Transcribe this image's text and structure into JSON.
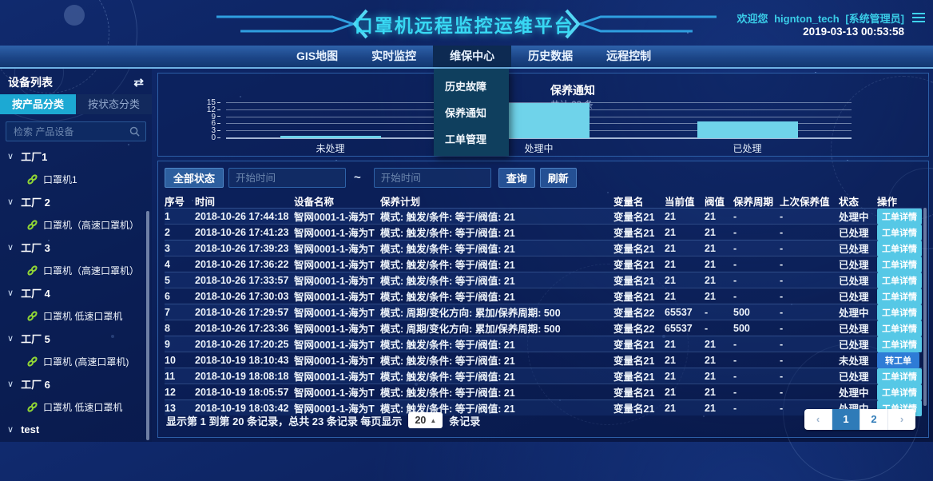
{
  "icons": {
    "swap": "⇄",
    "chevron": "∨",
    "caret_up": "▲"
  },
  "header": {
    "title": "口罩机远程监控运维平台",
    "welcome_prefix": "欢迎您",
    "username": "hignton_tech",
    "role": "[系统管理员]",
    "datetime": "2019-03-13 00:53:58"
  },
  "nav": {
    "items": [
      {
        "label": "GIS地图",
        "active": false
      },
      {
        "label": "实时监控",
        "active": false
      },
      {
        "label": "维保中心",
        "active": true
      },
      {
        "label": "历史数据",
        "active": false
      },
      {
        "label": "远程控制",
        "active": false
      }
    ],
    "dropdown_items": [
      "历史故障",
      "保养通知",
      "工单管理"
    ]
  },
  "sidebar": {
    "title": "设备列表",
    "tabs": [
      {
        "label": "按产品分类",
        "active": true
      },
      {
        "label": "按状态分类",
        "active": false
      }
    ],
    "search_placeholder": "检索 产品设备",
    "tree": [
      {
        "group": "工厂1",
        "children": [
          "口罩机1"
        ]
      },
      {
        "group": "工厂 2",
        "children": [
          "口罩机（高速口罩机）"
        ]
      },
      {
        "group": "工厂 3",
        "children": [
          "口罩机（高速口罩机）"
        ]
      },
      {
        "group": "工厂 4",
        "children": [
          "口罩机 低速口罩机"
        ]
      },
      {
        "group": "工厂 5",
        "children": [
          "口罩机 (高速口罩机)"
        ]
      },
      {
        "group": "工厂 6",
        "children": [
          "口罩机 低速口罩机"
        ]
      },
      {
        "group": "test",
        "children": []
      }
    ]
  },
  "chart_data": {
    "type": "bar",
    "title": "保养通知",
    "subtitle": "共计 23 条",
    "categories": [
      "未处理",
      "处理中",
      "已处理"
    ],
    "values": [
      1,
      15,
      7
    ],
    "total": 23,
    "ylim": [
      0,
      15
    ],
    "yticks": [
      0,
      3,
      6,
      9,
      12,
      15
    ],
    "bar_color": "#6fd3ea",
    "grid": true,
    "legend": "none"
  },
  "filters": {
    "status_button": "全部状态",
    "start_placeholder": "开始时间",
    "end_placeholder": "开始时间",
    "separator": "~",
    "search_button": "查询",
    "refresh_button": "刷新"
  },
  "table": {
    "columns": [
      "序号",
      "时间",
      "设备名称",
      "保养计划",
      "变量名",
      "当前值",
      "阀值",
      "保养周期",
      "上次保养值",
      "状态",
      "操作"
    ],
    "rows": [
      {
        "cells": [
          "1",
          "2018-10-26 17:44:18",
          "智网0001-1-海为T",
          "模式: 触发/条件: 等于/阀值: 21",
          "变量名21",
          "21",
          "21",
          "-",
          "-",
          "处理中"
        ],
        "action": "工单详情"
      },
      {
        "cells": [
          "2",
          "2018-10-26 17:41:23",
          "智网0001-1-海为T",
          "模式: 触发/条件: 等于/阀值: 21",
          "变量名21",
          "21",
          "21",
          "-",
          "-",
          "已处理"
        ],
        "action": "工单详情"
      },
      {
        "cells": [
          "3",
          "2018-10-26 17:39:23",
          "智网0001-1-海为T",
          "模式: 触发/条件: 等于/阀值: 21",
          "变量名21",
          "21",
          "21",
          "-",
          "-",
          "已处理"
        ],
        "action": "工单详情"
      },
      {
        "cells": [
          "4",
          "2018-10-26 17:36:22",
          "智网0001-1-海为T",
          "模式: 触发/条件: 等于/阀值: 21",
          "变量名21",
          "21",
          "21",
          "-",
          "-",
          "已处理"
        ],
        "action": "工单详情"
      },
      {
        "cells": [
          "5",
          "2018-10-26 17:33:57",
          "智网0001-1-海为T",
          "模式: 触发/条件: 等于/阀值: 21",
          "变量名21",
          "21",
          "21",
          "-",
          "-",
          "已处理"
        ],
        "action": "工单详情"
      },
      {
        "cells": [
          "6",
          "2018-10-26 17:30:03",
          "智网0001-1-海为T",
          "模式: 触发/条件: 等于/阀值: 21",
          "变量名21",
          "21",
          "21",
          "-",
          "-",
          "已处理"
        ],
        "action": "工单详情"
      },
      {
        "cells": [
          "7",
          "2018-10-26 17:29:57",
          "智网0001-1-海为T",
          "模式: 周期/变化方向: 累加/保养周期: 500",
          "变量名22",
          "65537",
          "-",
          "500",
          "-",
          "处理中"
        ],
        "action": "工单详情"
      },
      {
        "cells": [
          "8",
          "2018-10-26 17:23:36",
          "智网0001-1-海为T",
          "模式: 周期/变化方向: 累加/保养周期: 500",
          "变量名22",
          "65537",
          "-",
          "500",
          "-",
          "已处理"
        ],
        "action": "工单详情"
      },
      {
        "cells": [
          "9",
          "2018-10-26 17:20:25",
          "智网0001-1-海为T",
          "模式: 触发/条件: 等于/阀值: 21",
          "变量名21",
          "21",
          "21",
          "-",
          "-",
          "已处理"
        ],
        "action": "工单详情"
      },
      {
        "cells": [
          "10",
          "2018-10-19 18:10:43",
          "智网0001-1-海为T",
          "模式: 触发/条件: 等于/阀值: 21",
          "变量名21",
          "21",
          "21",
          "-",
          "-",
          "未处理"
        ],
        "action": "转工单"
      },
      {
        "cells": [
          "11",
          "2018-10-19 18:08:18",
          "智网0001-1-海为T",
          "模式: 触发/条件: 等于/阀值: 21",
          "变量名21",
          "21",
          "21",
          "-",
          "-",
          "已处理"
        ],
        "action": "工单详情"
      },
      {
        "cells": [
          "12",
          "2018-10-19 18:05:57",
          "智网0001-1-海为T",
          "模式: 触发/条件: 等于/阀值: 21",
          "变量名21",
          "21",
          "21",
          "-",
          "-",
          "处理中"
        ],
        "action": "工单详情"
      },
      {
        "cells": [
          "13",
          "2018-10-19 18:03:42",
          "智网0001-1-海为T",
          "模式: 触发/条件: 等于/阀值: 21",
          "变量名21",
          "21",
          "21",
          "-",
          "-",
          "处理中"
        ],
        "action": "工单详情"
      }
    ]
  },
  "footer": {
    "summary_left": "显示第 1 到第 20 条记录，总共 23 条记录 每页显示",
    "page_size": "20",
    "summary_right": "条记录",
    "pagination": [
      "‹",
      "1",
      "2",
      "›"
    ],
    "active_page": "1"
  }
}
